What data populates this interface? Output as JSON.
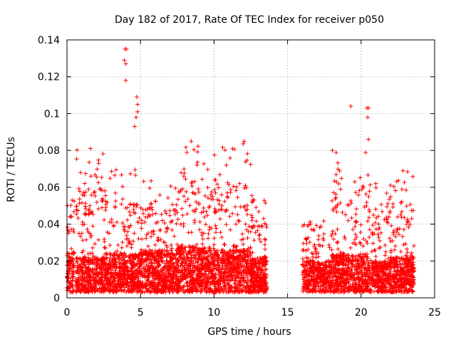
{
  "chart_data": {
    "type": "scatter",
    "title": "Day 182 of 2017, Rate Of TEC Index for receiver p050",
    "xlabel": "GPS time / hours",
    "ylabel": "ROTI / TECUs",
    "xlim": [
      0,
      25
    ],
    "ylim": [
      0,
      0.14
    ],
    "xticks": [
      0,
      5,
      10,
      15,
      20,
      25
    ],
    "xtick_labels": [
      "0",
      "5",
      "10",
      "15",
      "20",
      "25"
    ],
    "yticks": [
      0,
      0.02,
      0.04,
      0.06,
      0.08,
      0.1,
      0.12,
      0.14
    ],
    "ytick_labels": [
      "0",
      "0.02",
      "0.04",
      "0.06",
      "0.08",
      "0.1",
      "0.12",
      "0.14"
    ],
    "grid": true,
    "marker": "+",
    "color": "#ff0000",
    "series": [
      {
        "name": "ROTI",
        "notable_points": [
          {
            "x": 3.95,
            "y": 0.135
          },
          {
            "x": 4.05,
            "y": 0.135
          },
          {
            "x": 3.9,
            "y": 0.129
          },
          {
            "x": 4.0,
            "y": 0.127
          },
          {
            "x": 4.0,
            "y": 0.118
          },
          {
            "x": 4.75,
            "y": 0.109
          },
          {
            "x": 4.8,
            "y": 0.105
          },
          {
            "x": 4.8,
            "y": 0.101
          },
          {
            "x": 4.7,
            "y": 0.098
          },
          {
            "x": 4.6,
            "y": 0.093
          },
          {
            "x": 0.35,
            "y": 0.053
          },
          {
            "x": 1.6,
            "y": 0.081
          },
          {
            "x": 8.45,
            "y": 0.085
          },
          {
            "x": 12.05,
            "y": 0.085
          },
          {
            "x": 18.05,
            "y": 0.08
          },
          {
            "x": 19.3,
            "y": 0.104
          },
          {
            "x": 20.4,
            "y": 0.103
          },
          {
            "x": 20.5,
            "y": 0.103
          },
          {
            "x": 20.45,
            "y": 0.098
          },
          {
            "x": 20.5,
            "y": 0.086
          },
          {
            "x": 22.85,
            "y": 0.069
          }
        ],
        "envelopes": [
          {
            "x_start": 0.0,
            "x_end": 0.5,
            "baseline_max": 0.025,
            "peak_max": 0.053,
            "count": 110
          },
          {
            "x_start": 0.6,
            "x_end": 2.5,
            "baseline_max": 0.022,
            "peak_max": 0.081,
            "count": 440
          },
          {
            "x_start": 2.5,
            "x_end": 5.0,
            "baseline_max": 0.024,
            "peak_max": 0.07,
            "count": 600
          },
          {
            "x_start": 5.0,
            "x_end": 7.5,
            "baseline_max": 0.026,
            "peak_max": 0.066,
            "count": 620
          },
          {
            "x_start": 7.5,
            "x_end": 10.0,
            "baseline_max": 0.028,
            "peak_max": 0.084,
            "count": 620
          },
          {
            "x_start": 10.0,
            "x_end": 12.5,
            "baseline_max": 0.026,
            "peak_max": 0.084,
            "count": 620
          },
          {
            "x_start": 12.5,
            "x_end": 13.6,
            "baseline_max": 0.022,
            "peak_max": 0.058,
            "count": 280
          },
          {
            "x_start": 16.0,
            "x_end": 18.0,
            "baseline_max": 0.02,
            "peak_max": 0.043,
            "count": 420
          },
          {
            "x_start": 18.0,
            "x_end": 20.5,
            "baseline_max": 0.024,
            "peak_max": 0.08,
            "count": 560
          },
          {
            "x_start": 20.5,
            "x_end": 22.0,
            "baseline_max": 0.02,
            "peak_max": 0.063,
            "count": 340
          },
          {
            "x_start": 22.0,
            "x_end": 23.6,
            "baseline_max": 0.022,
            "peak_max": 0.069,
            "count": 380
          }
        ],
        "floor": 0.003,
        "gap_hours": [
          13.7,
          16.0
        ]
      }
    ]
  }
}
